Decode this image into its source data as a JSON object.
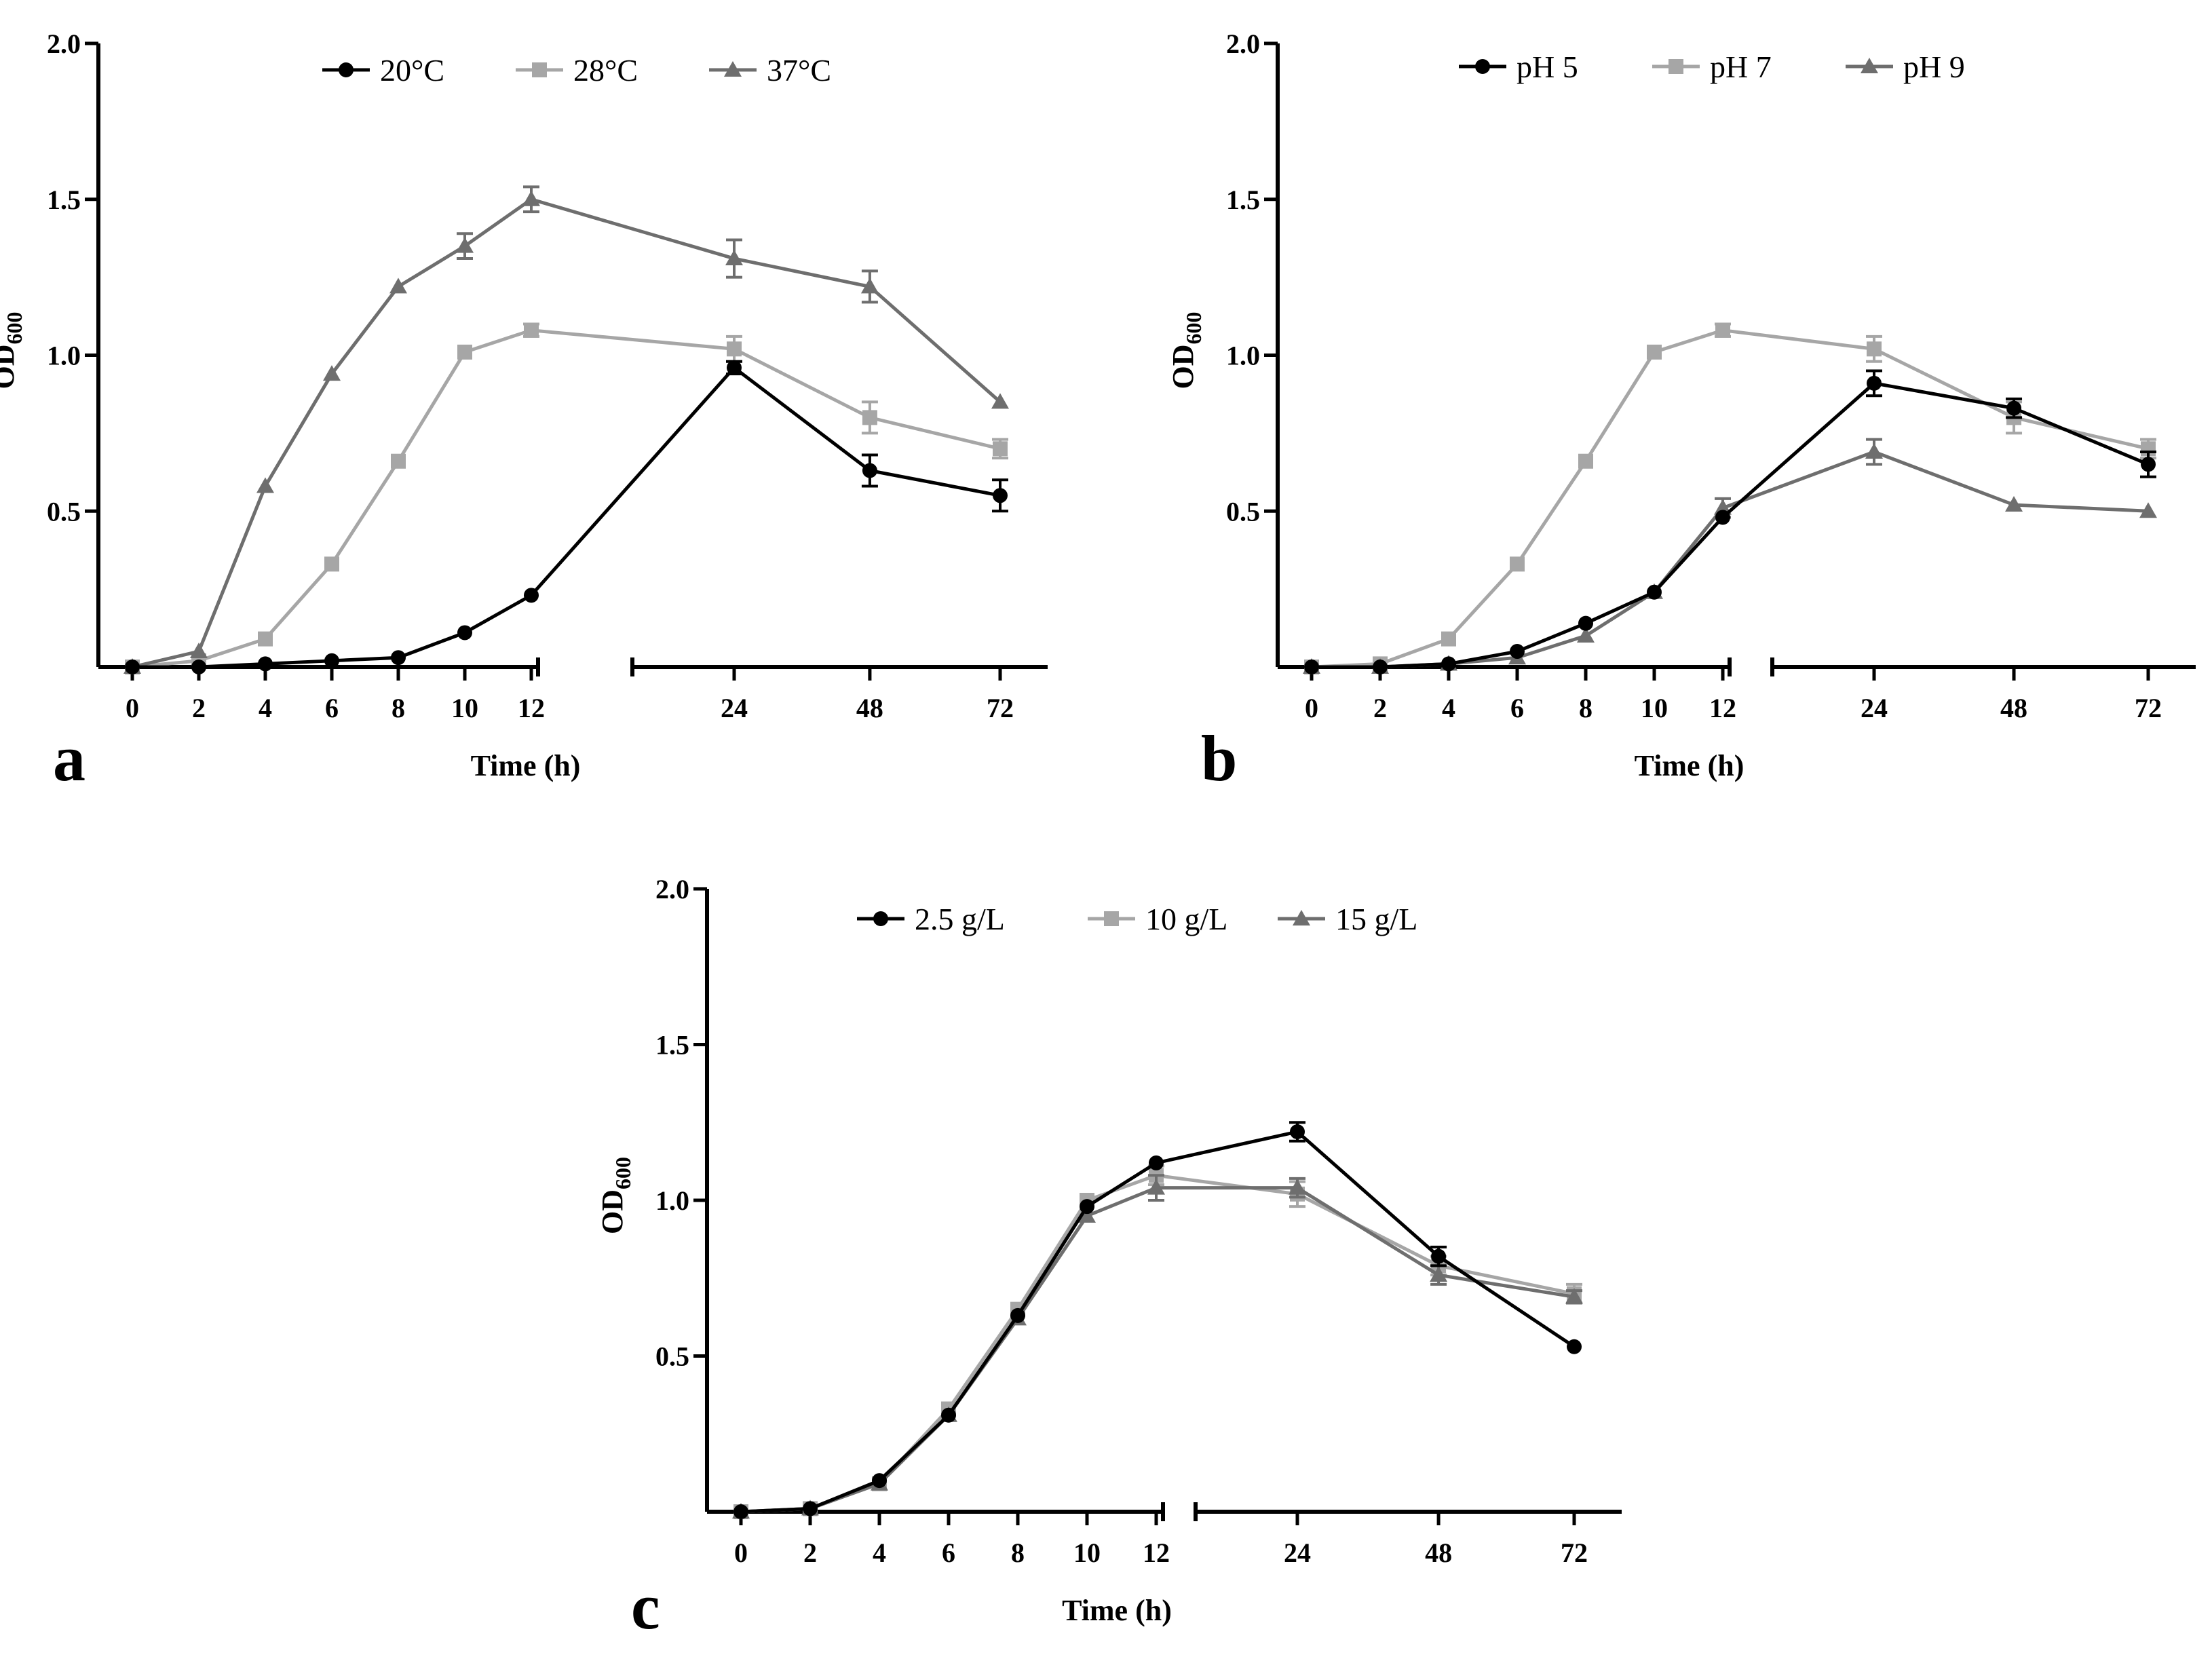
{
  "chart_data": [
    {
      "panel_letter": "a",
      "type": "line",
      "xlabel": "Time (h)",
      "ylabel_main": "OD",
      "ylabel_sub": "600",
      "ylim": [
        0,
        2.0
      ],
      "yticks": [
        "0.5",
        "1.0",
        "1.5",
        "2.0"
      ],
      "x_ticks": [
        "0",
        "2",
        "4",
        "6",
        "8",
        "10",
        "12",
        "24",
        "48",
        "72"
      ],
      "x_axis_break": "between 12 and 24",
      "legend_position": "top",
      "series": [
        {
          "name": "20°C",
          "marker": "circle",
          "color": "#000000",
          "values": [
            0.0,
            0.0,
            0.01,
            0.02,
            0.03,
            0.11,
            0.23,
            0.96,
            0.63,
            0.55
          ],
          "errors": [
            0,
            0,
            0,
            0,
            0,
            0,
            0,
            0.02,
            0.05,
            0.05
          ]
        },
        {
          "name": "28°C",
          "marker": "square",
          "color": "#a6a6a6",
          "values": [
            0.0,
            0.02,
            0.09,
            0.33,
            0.66,
            1.01,
            1.08,
            1.02,
            0.8,
            0.7
          ],
          "errors": [
            0,
            0,
            0,
            0,
            0,
            0,
            0.02,
            0.04,
            0.05,
            0.03
          ]
        },
        {
          "name": "37°C",
          "marker": "triangle",
          "color": "#6e6e6e",
          "values": [
            0.0,
            0.05,
            0.58,
            0.94,
            1.22,
            1.35,
            1.5,
            1.31,
            1.22,
            0.85
          ],
          "errors": [
            0,
            0,
            0,
            0,
            0,
            0.04,
            0.04,
            0.06,
            0.05,
            0
          ]
        }
      ]
    },
    {
      "panel_letter": "b",
      "type": "line",
      "xlabel": "Time (h)",
      "ylabel_main": "OD",
      "ylabel_sub": "600",
      "ylim": [
        0,
        2.0
      ],
      "yticks": [
        "0.5",
        "1.0",
        "1.5",
        "2.0"
      ],
      "x_ticks": [
        "0",
        "2",
        "4",
        "6",
        "8",
        "10",
        "12",
        "24",
        "48",
        "72"
      ],
      "x_axis_break": "between 12 and 24",
      "legend_position": "top",
      "series": [
        {
          "name": "pH 5",
          "marker": "circle",
          "color": "#000000",
          "values": [
            0.0,
            0.0,
            0.01,
            0.05,
            0.14,
            0.24,
            0.48,
            0.91,
            0.83,
            0.65
          ],
          "errors": [
            0,
            0,
            0,
            0,
            0,
            0,
            0,
            0.04,
            0.03,
            0.04
          ]
        },
        {
          "name": "pH 7",
          "marker": "square",
          "color": "#a6a6a6",
          "values": [
            0.0,
            0.01,
            0.09,
            0.33,
            0.66,
            1.01,
            1.08,
            1.02,
            0.8,
            0.7
          ],
          "errors": [
            0,
            0,
            0,
            0,
            0,
            0,
            0.02,
            0.04,
            0.05,
            0.03
          ]
        },
        {
          "name": "pH 9",
          "marker": "triangle",
          "color": "#6e6e6e",
          "values": [
            0.0,
            0.0,
            0.01,
            0.03,
            0.1,
            0.24,
            0.51,
            0.69,
            0.52,
            0.5
          ],
          "errors": [
            0,
            0,
            0,
            0,
            0,
            0,
            0.03,
            0.04,
            0,
            0
          ]
        }
      ]
    },
    {
      "panel_letter": "c",
      "type": "line",
      "xlabel": "Time (h)",
      "ylabel_main": "OD",
      "ylabel_sub": "600",
      "ylim": [
        0,
        2.0
      ],
      "yticks": [
        "0.5",
        "1.0",
        "1.5",
        "2.0"
      ],
      "x_ticks": [
        "0",
        "2",
        "4",
        "6",
        "8",
        "10",
        "12",
        "24",
        "48",
        "72"
      ],
      "x_axis_break": "between 12 and 24",
      "legend_position": "top",
      "series": [
        {
          "name": "2.5 g/L",
          "marker": "circle",
          "color": "#000000",
          "values": [
            0.0,
            0.01,
            0.1,
            0.31,
            0.63,
            0.98,
            1.12,
            1.22,
            0.82,
            0.53
          ],
          "errors": [
            0,
            0,
            0,
            0,
            0,
            0,
            0,
            0.03,
            0.03,
            0
          ]
        },
        {
          "name": "10 g/L",
          "marker": "square",
          "color": "#a6a6a6",
          "values": [
            0.0,
            0.01,
            0.09,
            0.33,
            0.65,
            1.0,
            1.08,
            1.02,
            0.79,
            0.7
          ],
          "errors": [
            0,
            0,
            0,
            0,
            0,
            0,
            0.03,
            0.04,
            0.03,
            0.03
          ]
        },
        {
          "name": "15 g/L",
          "marker": "triangle",
          "color": "#6e6e6e",
          "values": [
            0.0,
            0.01,
            0.09,
            0.31,
            0.62,
            0.95,
            1.04,
            1.04,
            0.76,
            0.69
          ],
          "errors": [
            0,
            0,
            0,
            0,
            0,
            0,
            0.04,
            0.03,
            0.03,
            0.02
          ]
        }
      ]
    }
  ]
}
